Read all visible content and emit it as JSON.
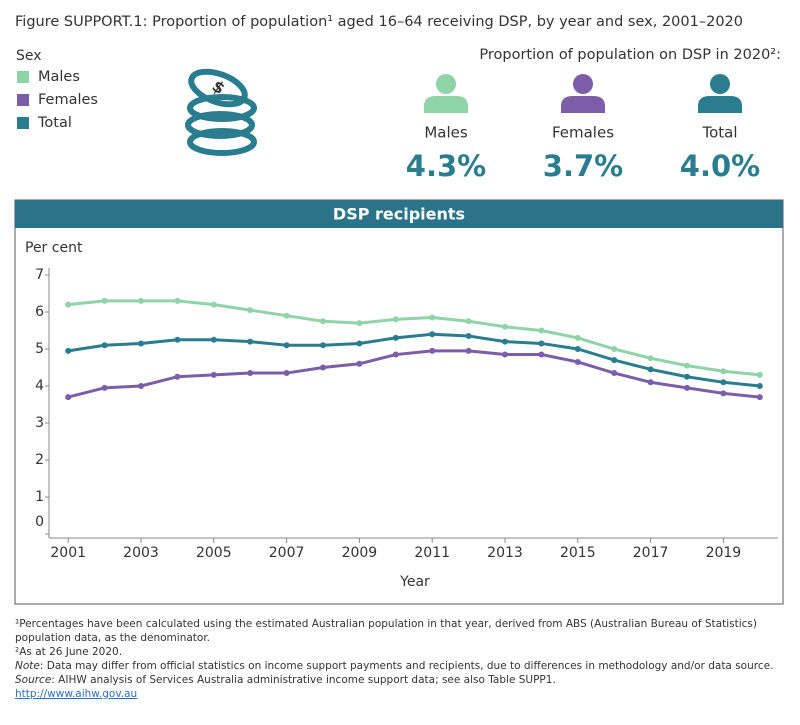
{
  "figure_title": "Figure SUPPORT.1: Proportion of population¹ aged 16–64 receiving DSP, by year and sex, 2001–2020",
  "summary": {
    "title": "Proportion of population on DSP in 2020²:",
    "items": [
      {
        "label": "Males",
        "value": "4.3%",
        "color": "#8fd3a8"
      },
      {
        "label": "Females",
        "value": "3.7%",
        "color": "#7b5ea7"
      },
      {
        "label": "Total",
        "value": "4.0%",
        "color": "#2a7d8e"
      }
    ]
  },
  "chart_data": {
    "type": "line",
    "title": "DSP recipients",
    "legend_title": "Sex",
    "y_label": "Per cent",
    "x_label": "Year",
    "x": [
      2001,
      2002,
      2003,
      2004,
      2005,
      2006,
      2007,
      2008,
      2009,
      2010,
      2011,
      2012,
      2013,
      2014,
      2015,
      2016,
      2017,
      2018,
      2019,
      2020
    ],
    "series": [
      {
        "name": "Males",
        "color": "#8fd3a8",
        "values": [
          6.2,
          6.3,
          6.3,
          6.3,
          6.2,
          6.05,
          5.9,
          5.75,
          5.7,
          5.8,
          5.85,
          5.75,
          5.6,
          5.5,
          5.3,
          5.0,
          4.75,
          4.55,
          4.4,
          4.3
        ]
      },
      {
        "name": "Females",
        "color": "#7b5ea7",
        "values": [
          3.7,
          3.95,
          4.0,
          4.25,
          4.3,
          4.35,
          4.35,
          4.5,
          4.6,
          4.85,
          4.95,
          4.95,
          4.85,
          4.85,
          4.65,
          4.35,
          4.1,
          3.95,
          3.8,
          3.7
        ]
      },
      {
        "name": "Total",
        "color": "#2a7d8e",
        "values": [
          4.95,
          5.1,
          5.15,
          5.25,
          5.25,
          5.2,
          5.1,
          5.1,
          5.15,
          5.3,
          5.4,
          5.35,
          5.2,
          5.15,
          5.0,
          4.7,
          4.45,
          4.25,
          4.1,
          4.0
        ]
      }
    ],
    "xlim": [
      2000.5,
      2020.5
    ],
    "xticks": [
      2001,
      2003,
      2005,
      2007,
      2009,
      2011,
      2013,
      2015,
      2017,
      2019
    ],
    "ylim": [
      0,
      7
    ],
    "yticks": [
      0,
      1,
      2,
      3,
      4,
      5,
      6,
      7
    ]
  },
  "footnotes": {
    "note1": "¹Percentages have been calculated using the estimated Australian population in that year, derived from ABS (Australian Bureau of Statistics) population data, as the denominator.",
    "note2": "²As at 26 June 2020.",
    "note_label": "Note",
    "note_text": ": Data may differ from official statistics on income support payments and recipients, due to differences in methodology and/or data source.",
    "source_label": "Source",
    "source_text": ": AIHW analysis of Services Australia administrative income support data; see also Table SUPP1.",
    "link": "http://www.aihw.gov.au"
  }
}
